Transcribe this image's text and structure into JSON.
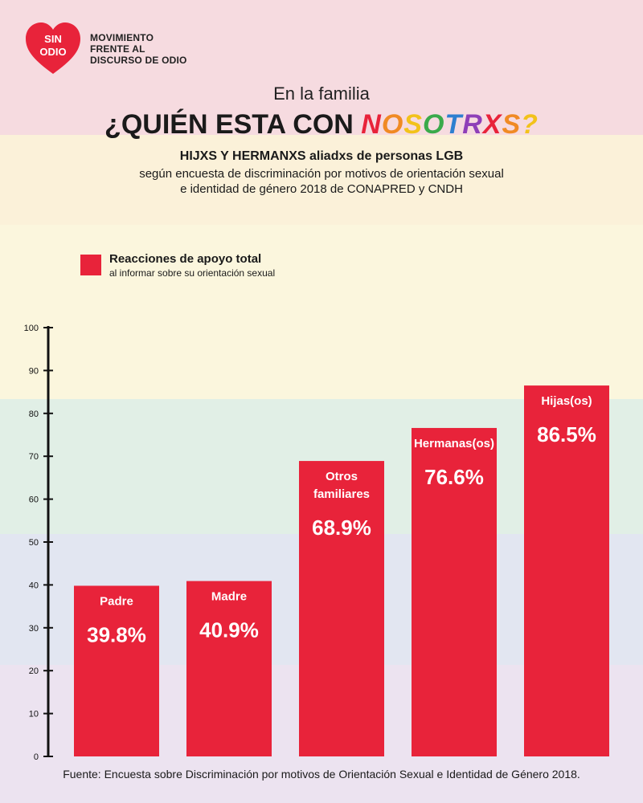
{
  "colors": {
    "accent": "#e8233a",
    "bands": [
      "#f6dbe0",
      "#fbf1d9",
      "#fbf6dd",
      "#e1efe6",
      "#e2e6f1",
      "#ece3f0"
    ],
    "rainbow": [
      "#e8233a",
      "#f08a24",
      "#f2c21b",
      "#3aaa4b",
      "#2e7fd0",
      "#8e3fb8"
    ]
  },
  "logo": {
    "line1": "SIN",
    "line2": "ODIO"
  },
  "brand": {
    "line1": "MOVIMIENTO",
    "line2": "FRENTE AL",
    "line3": "DISCURSO DE ODIO"
  },
  "header": {
    "kicker": "En la familia",
    "title_prefix": "¿QUIÉN ESTA CON ",
    "title_highlight": "NOSOTRXS?",
    "subtitle_bold": "HIJXS Y HERMANXS aliadxs de personas LGB",
    "subtitle_line1": "según encuesta de discriminación por motivos de orientación sexual",
    "subtitle_line2": "e identidad de género 2018 de CONAPRED y CNDH"
  },
  "legend": {
    "title": "Reacciones de apoyo total",
    "subtitle": "al informar sobre su orientación sexual"
  },
  "chart_data": {
    "type": "bar",
    "categories": [
      "Padre",
      "Madre",
      "Otros familiares",
      "Hermanas(os)",
      "Hijas(os)"
    ],
    "category_lines": [
      [
        "Padre"
      ],
      [
        "Madre"
      ],
      [
        "Otros",
        "familiares"
      ],
      [
        "Hermanas(os)"
      ],
      [
        "Hijas(os)"
      ]
    ],
    "values": [
      39.8,
      40.9,
      68.9,
      76.6,
      86.5
    ],
    "value_labels": [
      "39.8%",
      "40.9%",
      "68.9%",
      "76.6%",
      "86.5%"
    ],
    "series": [
      {
        "name": "Reacciones de apoyo total",
        "values": [
          39.8,
          40.9,
          68.9,
          76.6,
          86.5
        ]
      }
    ],
    "yticks": [
      0,
      10,
      20,
      30,
      40,
      50,
      60,
      70,
      80,
      90,
      100
    ],
    "ylim": [
      0,
      100
    ],
    "title": "",
    "xlabel": "",
    "ylabel": ""
  },
  "footer": {
    "source": "Fuente: Encuesta sobre Discriminación por motivos de Orientación Sexual e Identidad de Género 2018."
  }
}
